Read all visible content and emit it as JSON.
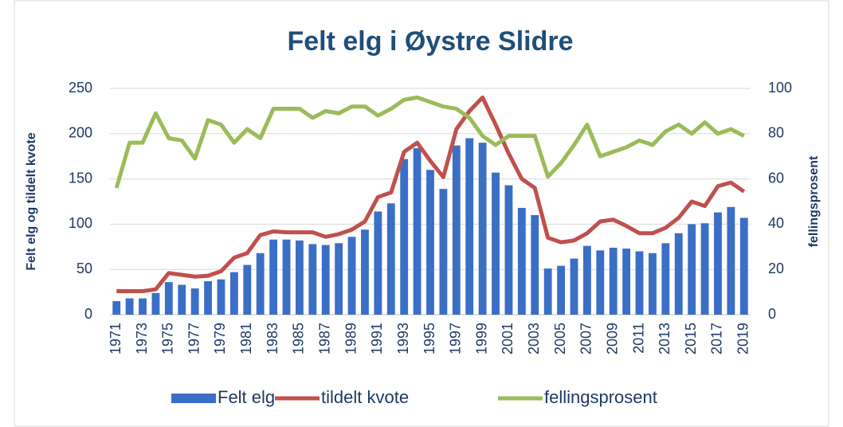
{
  "chart_data": {
    "type": "bar-line",
    "title": "Felt elg i Øystre Slidre",
    "y_label": "Felt elg og tildelt kvote",
    "y2_label": "fellingsprosent",
    "categories": [
      "1971",
      null,
      "1973",
      null,
      "1975",
      null,
      "1977",
      null,
      "1979",
      null,
      "1981",
      null,
      "1983",
      null,
      "1985",
      null,
      "1987",
      null,
      "1989",
      null,
      "1991",
      null,
      "1993",
      null,
      "1995",
      null,
      "1997",
      null,
      "1999",
      null,
      "2001",
      null,
      "2003",
      null,
      "2005",
      null,
      "2007",
      null,
      "2009",
      null,
      "2011",
      null,
      "2013",
      null,
      "2015",
      null,
      "2017",
      null,
      "2019"
    ],
    "series": [
      {
        "name": "Felt elg",
        "type": "bar",
        "color": "#3b6fc6",
        "values": [
          15,
          18,
          18,
          24,
          36,
          33,
          29,
          37,
          39,
          47,
          55,
          68,
          83,
          83,
          82,
          78,
          77,
          79,
          86,
          94,
          114,
          123,
          172,
          184,
          160,
          139,
          187,
          195,
          190,
          157,
          143,
          118,
          110,
          51,
          54,
          62,
          76,
          71,
          74,
          73,
          70,
          68,
          79,
          90,
          100,
          101,
          113,
          119,
          107
        ]
      },
      {
        "name": "tildelt kvote",
        "type": "line",
        "color": "#c0504d",
        "values": [
          26,
          26,
          26,
          28,
          46,
          44,
          42,
          43,
          48,
          63,
          68,
          88,
          92,
          91,
          91,
          91,
          86,
          89,
          94,
          103,
          130,
          135,
          180,
          190,
          170,
          152,
          205,
          225,
          240,
          210,
          178,
          150,
          140,
          85,
          80,
          82,
          90,
          103,
          105,
          98,
          90,
          90,
          96,
          107,
          125,
          120,
          142,
          146,
          136
        ]
      },
      {
        "name": "fellingsprosent",
        "type": "line",
        "axis": "y2",
        "color": "#9bbb59",
        "values": [
          56,
          76,
          76,
          89,
          78,
          77,
          69,
          86,
          84,
          76,
          82,
          78,
          91,
          91,
          91,
          87,
          90,
          89,
          92,
          92,
          88,
          91,
          95,
          96,
          94,
          92,
          91,
          87,
          79,
          75,
          79,
          79,
          79,
          61,
          67,
          75,
          84,
          70,
          72,
          74,
          77,
          75,
          81,
          84,
          80,
          85,
          80,
          82,
          79
        ]
      }
    ],
    "ylim": [
      0,
      250
    ],
    "yticks": [
      0,
      50,
      100,
      150,
      200,
      250
    ],
    "y2lim": [
      0,
      100
    ],
    "y2ticks": [
      0,
      20,
      40,
      60,
      80,
      100
    ],
    "grid": true,
    "legend": "bottom"
  }
}
